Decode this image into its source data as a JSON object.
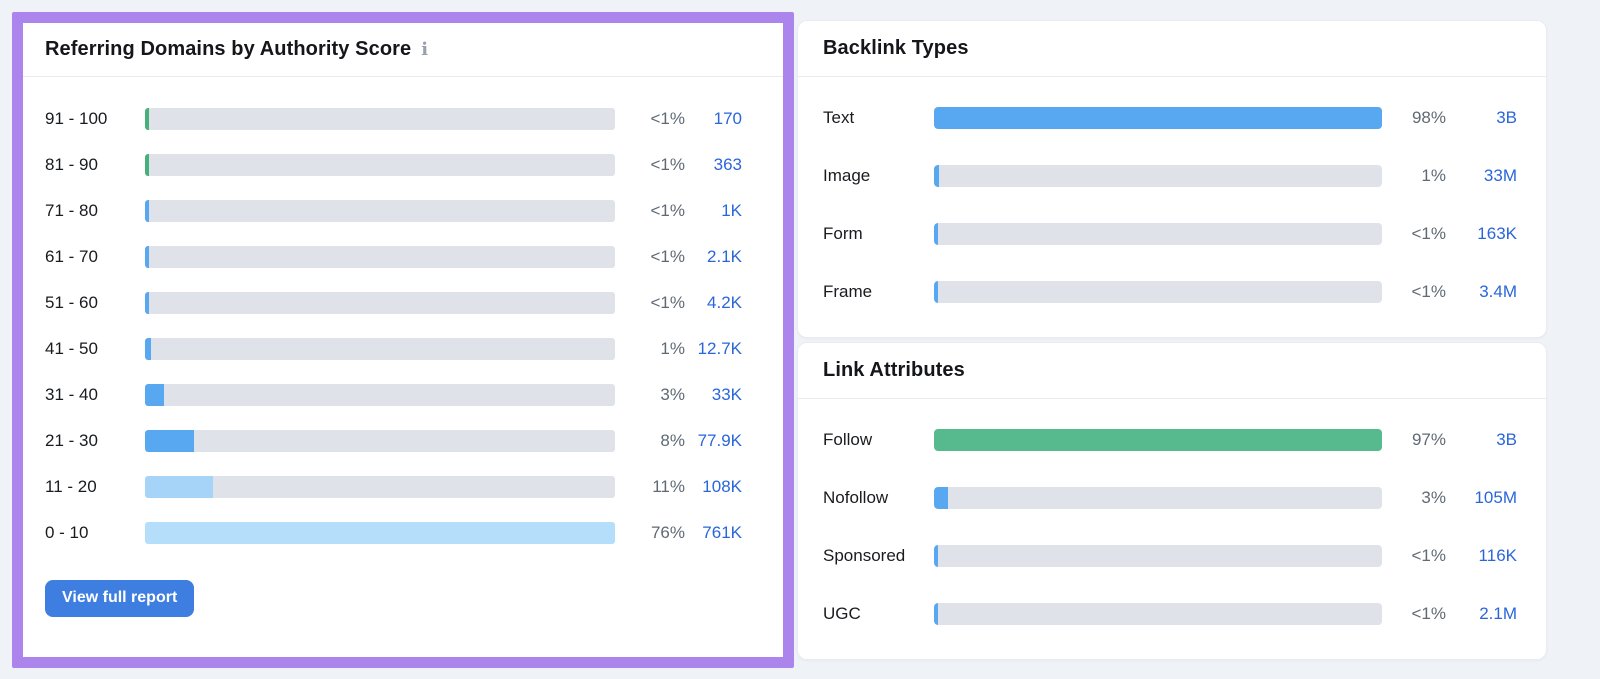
{
  "colors": {
    "page_background": "#eff2f6",
    "highlight_purple": "#ac85ec",
    "bar_track": "#e0e2e9",
    "blue": "#57a8f0",
    "lightblue": "#a6d4f8",
    "paleblue": "#b5defb",
    "green": "#47b07a",
    "follow_green": "#56ba8e",
    "link_blue": "#2a66d9",
    "percent_gray": "#5f6a74",
    "button_blue": "#3e7ee0"
  },
  "authority_panel": {
    "title": "Referring Domains by Authority Score",
    "info_icon": "i",
    "button_label": "View full report",
    "max_pct": 76,
    "rows": [
      {
        "range": "91 - 100",
        "percent": "<1%",
        "value": "170",
        "pct": 0.5,
        "color": "green"
      },
      {
        "range": "81 - 90",
        "percent": "<1%",
        "value": "363",
        "pct": 0.5,
        "color": "green"
      },
      {
        "range": "71 - 80",
        "percent": "<1%",
        "value": "1K",
        "pct": 0.5,
        "color": "blue"
      },
      {
        "range": "61 - 70",
        "percent": "<1%",
        "value": "2.1K",
        "pct": 0.5,
        "color": "blue"
      },
      {
        "range": "51 - 60",
        "percent": "<1%",
        "value": "4.2K",
        "pct": 0.5,
        "color": "blue"
      },
      {
        "range": "41 - 50",
        "percent": "1%",
        "value": "12.7K",
        "pct": 1,
        "color": "blue"
      },
      {
        "range": "31 - 40",
        "percent": "3%",
        "value": "33K",
        "pct": 3,
        "color": "blue"
      },
      {
        "range": "21 - 30",
        "percent": "8%",
        "value": "77.9K",
        "pct": 8,
        "color": "blue"
      },
      {
        "range": "11 - 20",
        "percent": "11%",
        "value": "108K",
        "pct": 11,
        "color": "lightblue"
      },
      {
        "range": "0 - 10",
        "percent": "76%",
        "value": "761K",
        "pct": 76,
        "color": "paleblue"
      }
    ]
  },
  "backlink_types": {
    "title": "Backlink Types",
    "max_pct": 98,
    "rows": [
      {
        "label": "Text",
        "percent": "98%",
        "value": "3B",
        "pct": 98,
        "color": "blue"
      },
      {
        "label": "Image",
        "percent": "1%",
        "value": "33M",
        "pct": 1,
        "color": "blue"
      },
      {
        "label": "Form",
        "percent": "<1%",
        "value": "163K",
        "pct": 0.5,
        "color": "blue"
      },
      {
        "label": "Frame",
        "percent": "<1%",
        "value": "3.4M",
        "pct": 0.5,
        "color": "blue"
      }
    ]
  },
  "link_attributes": {
    "title": "Link Attributes",
    "max_pct": 97,
    "rows": [
      {
        "label": "Follow",
        "percent": "97%",
        "value": "3B",
        "pct": 97,
        "color": "follow_green"
      },
      {
        "label": "Nofollow",
        "percent": "3%",
        "value": "105M",
        "pct": 3,
        "color": "blue"
      },
      {
        "label": "Sponsored",
        "percent": "<1%",
        "value": "116K",
        "pct": 0.5,
        "color": "blue"
      },
      {
        "label": "UGC",
        "percent": "<1%",
        "value": "2.1M",
        "pct": 0.5,
        "color": "blue"
      }
    ]
  }
}
